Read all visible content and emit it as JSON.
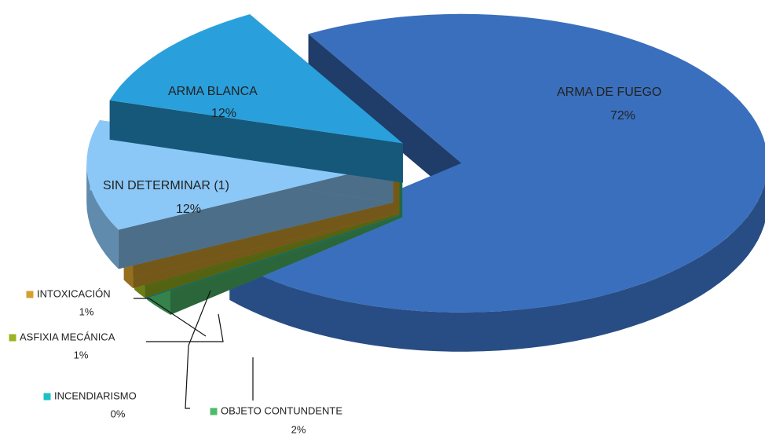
{
  "chart_data": {
    "type": "pie3d",
    "categories": [
      "ARMA DE FUEGO",
      "OBJETO CONTUNDENTE",
      "INCENDIARISMO",
      "ASFIXIA MECÁNICA",
      "INTOXICACIÓN",
      "SIN DETERMINAR (1)",
      "ARMA BLANCA"
    ],
    "values": [
      72,
      2,
      0,
      1,
      1,
      12,
      12
    ],
    "value_labels": [
      "72%",
      "2%",
      "0%",
      "1%",
      "1%",
      "12%",
      "12%"
    ],
    "colors": [
      "#3a6fbd",
      "#4dbb6a",
      "#1ec0c8",
      "#9ab520",
      "#d4a030",
      "#8cc8f7",
      "#29a0dc"
    ]
  }
}
